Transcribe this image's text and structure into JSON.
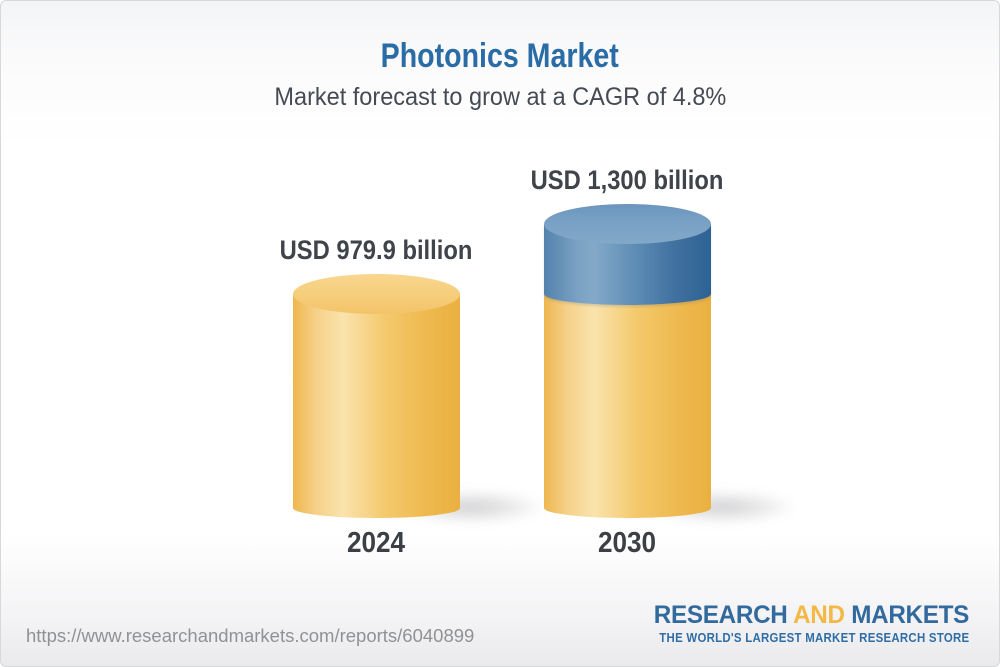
{
  "title": "Photonics Market",
  "subtitle": "Market forecast to grow at a CAGR of 4.8%",
  "chart_data": {
    "type": "bar",
    "variant": "3d-cylinder-comparison",
    "categories": [
      "2024",
      "2030"
    ],
    "values": [
      979.9,
      1300
    ],
    "unit": "USD billion",
    "value_labels": [
      "USD 979.9 billion",
      "USD 1,300 billion"
    ],
    "cagr_pct": 4.8,
    "legend": "none",
    "axes": "none",
    "note": "2030 cylinder shows growth above the 2024 value as a blue top segment",
    "segments": [
      [
        {
          "value": 979.9,
          "color": "gold"
        }
      ],
      [
        {
          "value": 979.9,
          "color": "gold"
        },
        {
          "value": 320.1,
          "color": "blue"
        }
      ]
    ],
    "colors": {
      "gold": "#f2c161",
      "blue": "#4e7fac",
      "label": "#3f444b",
      "title": "#2a6ca6"
    }
  },
  "footer": {
    "url": "https://www.researchandmarkets.com/reports/6040899",
    "logo": {
      "word1": "RESEARCH",
      "word2": "AND",
      "word3": "MARKETS",
      "tagline": "THE WORLD'S LARGEST MARKET RESEARCH STORE",
      "blue": "#336a9e",
      "gold": "#f3b845"
    }
  }
}
